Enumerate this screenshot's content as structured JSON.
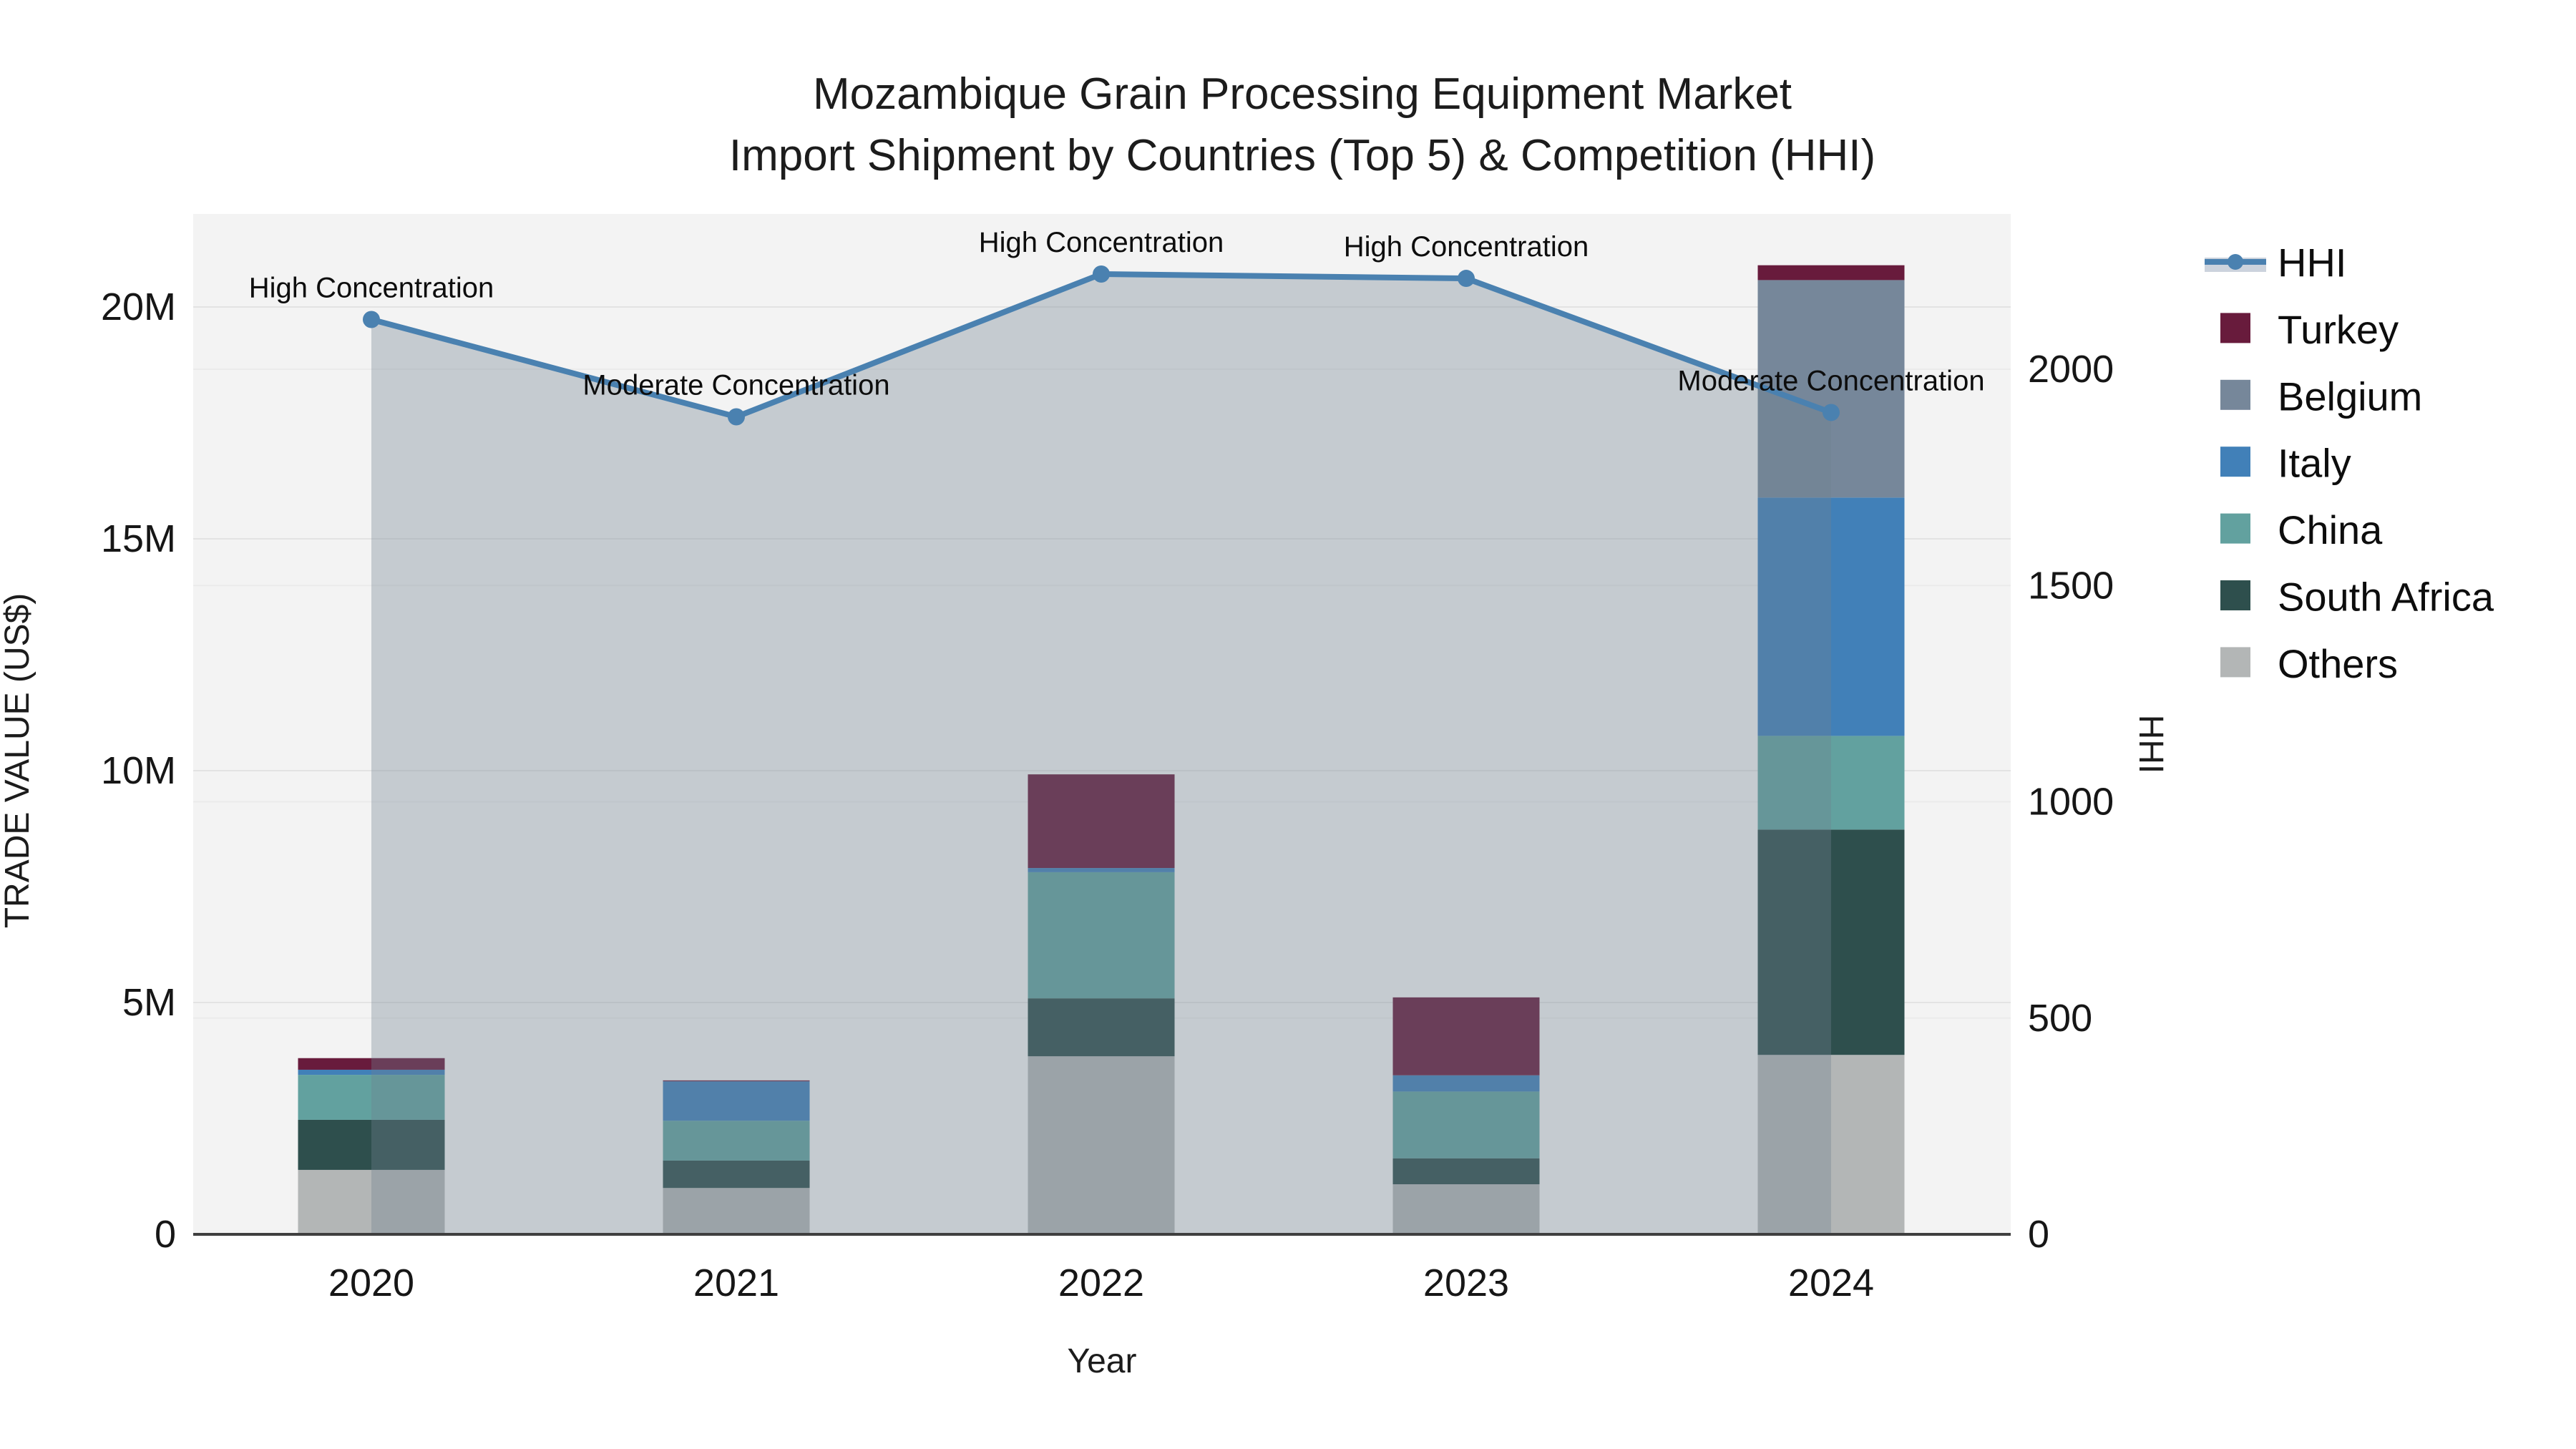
{
  "title": {
    "line1": "Mozambique Grain Processing Equipment Market",
    "line2": "Import Shipment by Countries (Top 5) & Competition (HHI)"
  },
  "chart_data": {
    "type": "stacked-bar+line",
    "categories": [
      "2020",
      "2021",
      "2022",
      "2023",
      "2024"
    ],
    "bar_value_unit": "US$ millions",
    "series": [
      {
        "name": "Others",
        "color": "#b3b6b6",
        "values": [
          1.39,
          1.0,
          3.84,
          1.08,
          3.87
        ]
      },
      {
        "name": "South Africa",
        "color": "#2e4f4d",
        "values": [
          1.08,
          0.59,
          1.25,
          0.56,
          4.86
        ]
      },
      {
        "name": "China",
        "color": "#62a19f",
        "values": [
          0.97,
          0.86,
          2.72,
          1.44,
          2.02
        ]
      },
      {
        "name": "Italy",
        "color": "#4180b8",
        "values": [
          0.11,
          0.85,
          0.09,
          0.35,
          5.14
        ]
      },
      {
        "name": "Belgium",
        "color": "#76879a",
        "values": [
          0.0,
          0.0,
          0.0,
          0.0,
          4.69
        ]
      },
      {
        "name": "Turkey",
        "color": "#681b3c",
        "values": [
          0.25,
          0.02,
          2.02,
          1.68,
          0.32
        ]
      }
    ],
    "line_series": {
      "name": "HHI",
      "color": "#4a81b0",
      "fill_color": "rgba(112,128,144,0.35)",
      "values": [
        2115,
        1890,
        2220,
        2210,
        1900
      ]
    },
    "annotations": [
      {
        "year": "2020",
        "label": "High Concentration"
      },
      {
        "year": "2021",
        "label": "Moderate Concentration"
      },
      {
        "year": "2022",
        "label": "High Concentration"
      },
      {
        "year": "2023",
        "label": "High Concentration"
      },
      {
        "year": "2024",
        "label": "Moderate Concentration"
      }
    ],
    "xaxis": {
      "title": "Year"
    },
    "yaxis_left": {
      "title": "TRADE VALUE (US$)",
      "tick_labels": [
        "0",
        "5M",
        "10M",
        "15M",
        "20M"
      ],
      "tick_values": [
        0,
        5,
        10,
        15,
        20
      ]
    },
    "yaxis_right": {
      "title": "HHI",
      "tick_labels": [
        "0",
        "500",
        "1000",
        "1500",
        "2000"
      ],
      "tick_values": [
        0,
        500,
        1000,
        1500,
        2000
      ]
    },
    "legend": {
      "items": [
        "HHI",
        "Turkey",
        "Belgium",
        "Italy",
        "China",
        "South Africa",
        "Others"
      ]
    },
    "colors": {
      "plot_background": "#f3f3f3",
      "grid_left": "#e3e3e3",
      "grid_right": "#ebebeb",
      "axis_line": "#3f3f3f",
      "hhi_legend_band": "#ccd3dd"
    }
  }
}
